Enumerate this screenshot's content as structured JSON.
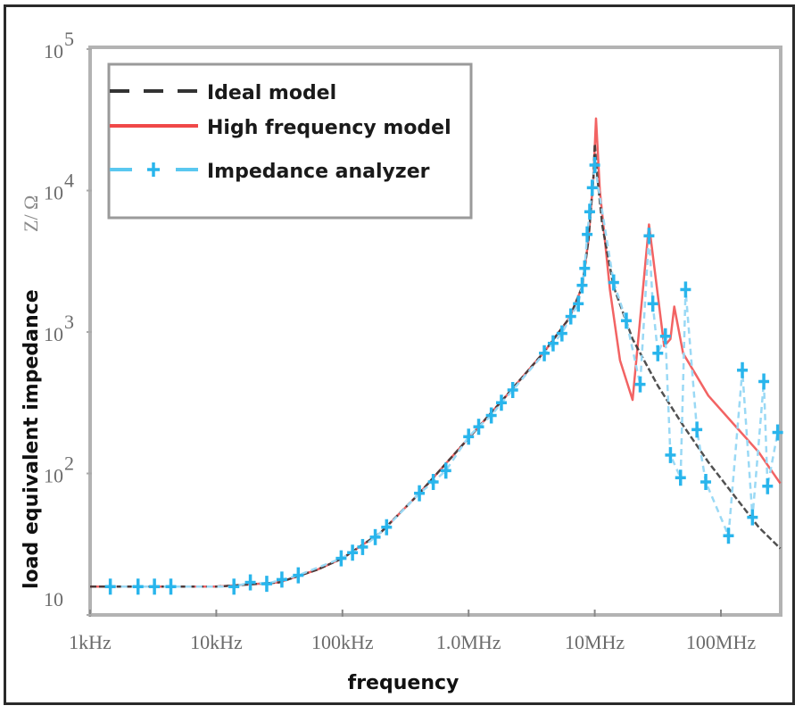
{
  "chart_data": {
    "type": "line",
    "title": "",
    "xlabel": "frequency",
    "ylabel": "load equivalent impedance",
    "ylabel_unit": "Z/ Ω",
    "xscale": "log",
    "yscale": "log",
    "xlim_log10_hz": [
      3,
      8.47
    ],
    "ylim_log10_ohm": [
      1,
      5
    ],
    "grid": false,
    "legend_position": "top-left",
    "x_ticks": [
      {
        "log10_hz": 3,
        "label": "1kHz"
      },
      {
        "log10_hz": 4,
        "label": "10kHz"
      },
      {
        "log10_hz": 5,
        "label": "100kHz"
      },
      {
        "log10_hz": 6,
        "label": "1.0MHz"
      },
      {
        "log10_hz": 7,
        "label": "10MHz"
      },
      {
        "log10_hz": 8,
        "label": "100MHz"
      }
    ],
    "y_ticks": [
      {
        "log10_ohm": 1,
        "base": "10",
        "exp": ""
      },
      {
        "log10_ohm": 2,
        "base": "10",
        "exp": "2"
      },
      {
        "log10_ohm": 3,
        "base": "10",
        "exp": "3"
      },
      {
        "log10_ohm": 4,
        "base": "10",
        "exp": "4"
      },
      {
        "log10_ohm": 5,
        "base": "10",
        "exp": "5"
      }
    ],
    "series": [
      {
        "name": "Ideal model",
        "color": "#333333",
        "style": "dashed",
        "points_log10": [
          [
            3.0,
            1.2
          ],
          [
            4.0,
            1.2
          ],
          [
            4.5,
            1.23
          ],
          [
            4.8,
            1.32
          ],
          [
            5.0,
            1.4
          ],
          [
            5.3,
            1.58
          ],
          [
            5.6,
            1.85
          ],
          [
            6.0,
            2.25
          ],
          [
            6.3,
            2.55
          ],
          [
            6.6,
            2.86
          ],
          [
            6.8,
            3.1
          ],
          [
            6.9,
            3.32
          ],
          [
            6.95,
            3.65
          ],
          [
            6.99,
            4.1
          ],
          [
            7.0,
            4.33
          ],
          [
            7.02,
            4.1
          ],
          [
            7.06,
            3.75
          ],
          [
            7.15,
            3.32
          ],
          [
            7.3,
            2.95
          ],
          [
            7.5,
            2.62
          ],
          [
            7.7,
            2.34
          ],
          [
            7.9,
            2.08
          ],
          [
            8.1,
            1.85
          ],
          [
            8.3,
            1.62
          ],
          [
            8.47,
            1.47
          ]
        ]
      },
      {
        "name": "High frequency model",
        "color": "#f04848",
        "style": "solid",
        "points_log10": [
          [
            3.0,
            1.2
          ],
          [
            4.0,
            1.2
          ],
          [
            4.5,
            1.23
          ],
          [
            4.8,
            1.32
          ],
          [
            5.0,
            1.4
          ],
          [
            5.3,
            1.58
          ],
          [
            5.6,
            1.85
          ],
          [
            6.0,
            2.25
          ],
          [
            6.3,
            2.55
          ],
          [
            6.6,
            2.86
          ],
          [
            6.8,
            3.1
          ],
          [
            6.9,
            3.32
          ],
          [
            6.95,
            3.65
          ],
          [
            6.99,
            4.1
          ],
          [
            7.01,
            4.51
          ],
          [
            7.04,
            4.0
          ],
          [
            7.12,
            3.3
          ],
          [
            7.2,
            2.8
          ],
          [
            7.3,
            2.52
          ],
          [
            7.43,
            3.76
          ],
          [
            7.55,
            2.9
          ],
          [
            7.6,
            2.95
          ],
          [
            7.63,
            3.18
          ],
          [
            7.7,
            2.85
          ],
          [
            7.9,
            2.55
          ],
          [
            8.1,
            2.35
          ],
          [
            8.3,
            2.15
          ],
          [
            8.47,
            1.93
          ]
        ]
      },
      {
        "name": "Impedance analyzer",
        "color": "#29b5ec",
        "style": "dashed-plus",
        "points_log10": [
          [
            3.16,
            1.2
          ],
          [
            3.38,
            1.2
          ],
          [
            3.51,
            1.2
          ],
          [
            3.64,
            1.2
          ],
          [
            4.14,
            1.2
          ],
          [
            4.27,
            1.23
          ],
          [
            4.4,
            1.22
          ],
          [
            4.52,
            1.25
          ],
          [
            4.65,
            1.28
          ],
          [
            4.99,
            1.4
          ],
          [
            5.08,
            1.44
          ],
          [
            5.16,
            1.48
          ],
          [
            5.26,
            1.55
          ],
          [
            5.35,
            1.62
          ],
          [
            5.61,
            1.86
          ],
          [
            5.72,
            1.94
          ],
          [
            5.82,
            2.02
          ],
          [
            6.0,
            2.26
          ],
          [
            6.08,
            2.33
          ],
          [
            6.18,
            2.41
          ],
          [
            6.26,
            2.5
          ],
          [
            6.35,
            2.59
          ],
          [
            6.6,
            2.85
          ],
          [
            6.67,
            2.92
          ],
          [
            6.74,
            2.99
          ],
          [
            6.81,
            3.11
          ],
          [
            6.87,
            3.2
          ],
          [
            6.9,
            3.33
          ],
          [
            6.92,
            3.45
          ],
          [
            6.94,
            3.69
          ],
          [
            6.96,
            3.85
          ],
          [
            6.98,
            4.02
          ],
          [
            7.0,
            4.18
          ],
          [
            7.15,
            3.35
          ],
          [
            7.25,
            3.08
          ],
          [
            7.36,
            2.63
          ],
          [
            7.43,
            3.68
          ],
          [
            7.46,
            3.2
          ],
          [
            7.5,
            2.85
          ],
          [
            7.56,
            2.97
          ],
          [
            7.6,
            2.13
          ],
          [
            7.68,
            1.97
          ],
          [
            7.72,
            3.3
          ],
          [
            7.81,
            2.31
          ],
          [
            7.88,
            1.94
          ],
          [
            8.06,
            1.56
          ],
          [
            8.17,
            2.73
          ],
          [
            8.25,
            1.69
          ],
          [
            8.34,
            2.65
          ],
          [
            8.37,
            1.91
          ],
          [
            8.45,
            2.29
          ]
        ]
      }
    ]
  }
}
